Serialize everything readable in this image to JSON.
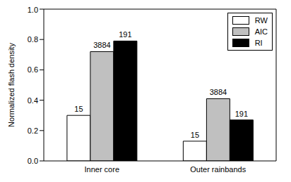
{
  "chart_data": {
    "type": "bar",
    "y_label": "Normalized flash density",
    "categories": [
      "Inner core",
      "Outer rainbands"
    ],
    "series": [
      {
        "name": "RW",
        "color": "#ffffff",
        "values": [
          0.3,
          0.13
        ],
        "counts": [
          15,
          15
        ]
      },
      {
        "name": "AIC",
        "color": "#c0c0c0",
        "values": [
          0.72,
          0.41
        ],
        "counts": [
          3884,
          3884
        ]
      },
      {
        "name": "RI",
        "color": "#000000",
        "values": [
          0.79,
          0.27
        ],
        "counts": [
          191,
          191
        ]
      }
    ],
    "ylim": [
      0,
      1
    ],
    "yticks": [
      {
        "value": 0,
        "label": "0.0"
      },
      {
        "value": 0.2,
        "label": "0.2"
      },
      {
        "value": 0.4,
        "label": "0.4"
      },
      {
        "value": 0.6,
        "label": "0.6"
      },
      {
        "value": 0.8,
        "label": "0.8"
      },
      {
        "value": 1,
        "label": "1.0"
      }
    ],
    "grid": false,
    "legend": "upper right"
  }
}
